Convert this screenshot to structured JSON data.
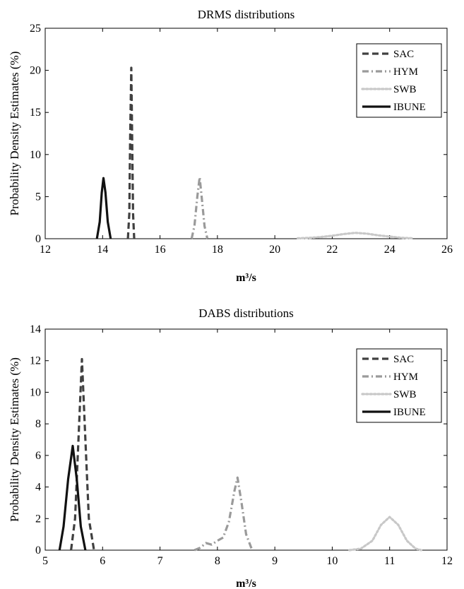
{
  "chart_data": [
    {
      "type": "line",
      "title": "DRMS distributions",
      "xlabel": "m³/s",
      "ylabel": "Probability Density Estimates (%)",
      "xlim": [
        12,
        26
      ],
      "ylim": [
        0,
        25
      ],
      "xticks": [
        12,
        14,
        16,
        18,
        20,
        22,
        24,
        26
      ],
      "yticks": [
        0,
        5,
        10,
        15,
        20,
        25
      ],
      "grid": false,
      "legend": "top-right",
      "series": [
        {
          "name": "SAC",
          "color": "#404040",
          "dash": "dashed",
          "x": [
            14.88,
            14.93,
            14.96,
            15.0,
            15.03,
            15.06,
            15.1
          ],
          "y": [
            0,
            3,
            12,
            20.3,
            12,
            3,
            0
          ]
        },
        {
          "name": "HYM",
          "color": "#9a9a9a",
          "dash": "dashdot",
          "x": [
            17.1,
            17.2,
            17.3,
            17.38,
            17.45,
            17.55,
            17.65
          ],
          "y": [
            0,
            1.5,
            5,
            7.3,
            5,
            1.5,
            0
          ]
        },
        {
          "name": "SWB",
          "color": "#c8c8c8",
          "dash": "dotted",
          "x": [
            20.8,
            21.2,
            21.6,
            22.0,
            22.4,
            22.8,
            23.2,
            23.6,
            24.0,
            24.4,
            24.8
          ],
          "y": [
            0.05,
            0.1,
            0.2,
            0.35,
            0.55,
            0.7,
            0.6,
            0.4,
            0.25,
            0.12,
            0.05
          ]
        },
        {
          "name": "IBUNE",
          "color": "#111111",
          "dash": "solid",
          "x": [
            13.8,
            13.9,
            13.97,
            14.03,
            14.1,
            14.18,
            14.28
          ],
          "y": [
            0,
            2,
            5.5,
            7.2,
            5.5,
            2,
            0
          ]
        }
      ]
    },
    {
      "type": "line",
      "title": "DABS distributions",
      "xlabel": "m³/s",
      "ylabel": "Probability Density Estimates (%)",
      "xlim": [
        5,
        12
      ],
      "ylim": [
        0,
        14
      ],
      "xticks": [
        5,
        6,
        7,
        8,
        9,
        10,
        11,
        12
      ],
      "yticks": [
        0,
        2,
        4,
        6,
        8,
        10,
        12,
        14
      ],
      "grid": false,
      "legend": "top-right",
      "series": [
        {
          "name": "SAC",
          "color": "#404040",
          "dash": "dashed",
          "x": [
            5.45,
            5.52,
            5.58,
            5.64,
            5.7,
            5.76,
            5.85
          ],
          "y": [
            0,
            2,
            7,
            12.1,
            7,
            2,
            0
          ]
        },
        {
          "name": "HYM",
          "color": "#9a9a9a",
          "dash": "dashdot",
          "x": [
            7.6,
            7.7,
            7.8,
            7.9,
            8.0,
            8.1,
            8.2,
            8.3,
            8.35,
            8.42,
            8.5,
            8.6
          ],
          "y": [
            0,
            0.15,
            0.45,
            0.35,
            0.6,
            0.8,
            1.8,
            3.8,
            4.6,
            3.0,
            1.0,
            0.05
          ]
        },
        {
          "name": "SWB",
          "color": "#c8c8c8",
          "dash": "dotted",
          "x": [
            10.3,
            10.5,
            10.7,
            10.85,
            11.0,
            11.15,
            11.3,
            11.45,
            11.55
          ],
          "y": [
            0,
            0.1,
            0.6,
            1.6,
            2.1,
            1.6,
            0.6,
            0.1,
            0
          ]
        },
        {
          "name": "IBUNE",
          "color": "#111111",
          "dash": "solid",
          "x": [
            5.25,
            5.32,
            5.4,
            5.48,
            5.55,
            5.62,
            5.7
          ],
          "y": [
            0,
            1.5,
            4.5,
            6.6,
            4.5,
            1.5,
            0
          ]
        }
      ]
    }
  ]
}
